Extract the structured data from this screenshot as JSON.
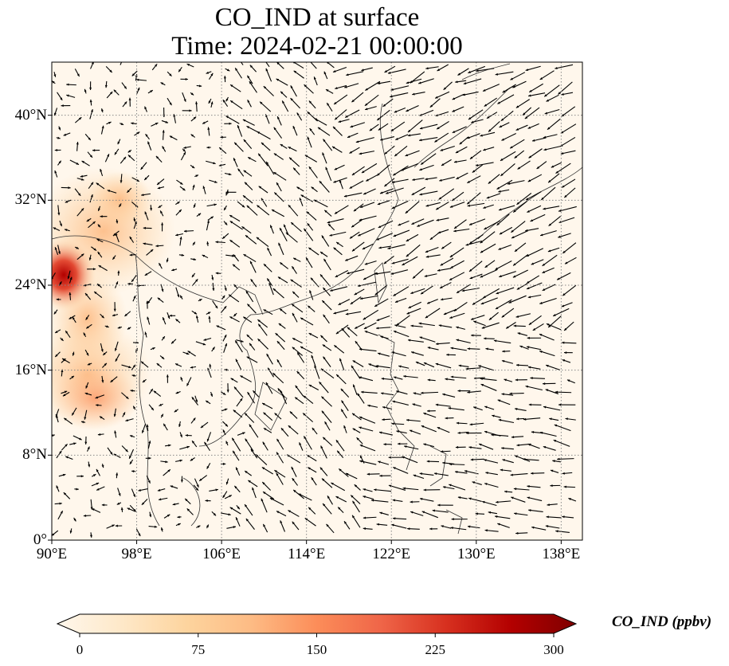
{
  "title": {
    "line1": "CO_IND at surface",
    "line2": "Time: 2024-02-21 00:00:00"
  },
  "map": {
    "variable": "CO_IND",
    "level": "surface",
    "extent": {
      "lon_min": 90,
      "lon_max": 140,
      "lat_min": 0,
      "lat_max": 45
    },
    "gridlines": "dotted",
    "lat_ticks": [
      {
        "value": 0,
        "label": "0°"
      },
      {
        "value": 8,
        "label": "8°N"
      },
      {
        "value": 16,
        "label": "16°N"
      },
      {
        "value": 24,
        "label": "24°N"
      },
      {
        "value": 32,
        "label": "32°N"
      },
      {
        "value": 40,
        "label": "40°N"
      }
    ],
    "lon_ticks": [
      {
        "value": 90,
        "label": "90°E"
      },
      {
        "value": 98,
        "label": "98°E"
      },
      {
        "value": 106,
        "label": "106°E"
      },
      {
        "value": 114,
        "label": "114°E"
      },
      {
        "value": 122,
        "label": "122°E"
      },
      {
        "value": 130,
        "label": "130°E"
      },
      {
        "value": 138,
        "label": "138°E"
      }
    ],
    "overlay": "wind-vectors-arrows",
    "colors": {
      "land_outline": "#333333",
      "grid": "#888888",
      "arrow": "#000000"
    }
  },
  "colorbar": {
    "label": "CO_IND (ppbv)",
    "min": 0,
    "max": 300,
    "extend": "both",
    "colormap": "OrRd",
    "stops": [
      "#fff7ec",
      "#fee8c8",
      "#fdd49e",
      "#fdbb84",
      "#fc8d59",
      "#ef6548",
      "#d7301f",
      "#b30000",
      "#7f0000"
    ],
    "ticks": [
      {
        "value": 0,
        "label": "0"
      },
      {
        "value": 75,
        "label": "75"
      },
      {
        "value": 150,
        "label": "150"
      },
      {
        "value": 225,
        "label": "225"
      },
      {
        "value": 300,
        "label": "300"
      }
    ]
  }
}
